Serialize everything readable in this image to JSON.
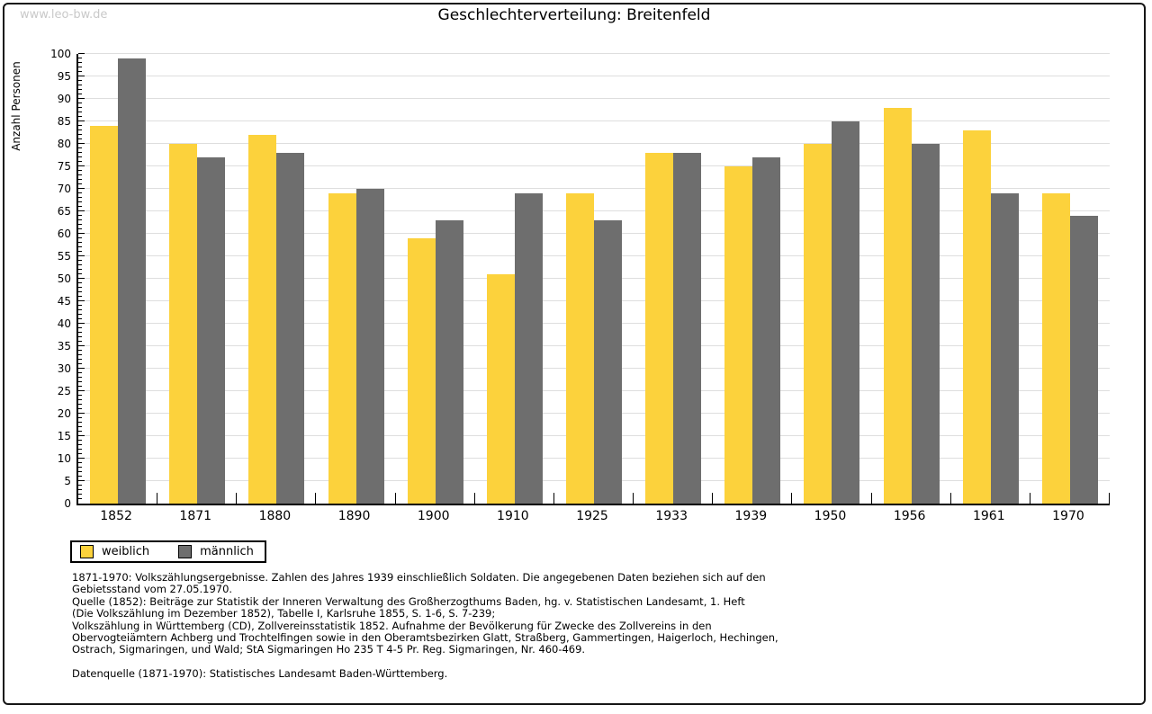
{
  "watermark": "www.leo-bw.de",
  "chart_data": {
    "type": "bar",
    "title": "Geschlechterverteilung: Breitenfeld",
    "ylabel": "Anzahl Personen",
    "xlabel": "",
    "ylim": [
      0,
      100
    ],
    "y_major_step": 5,
    "y_minor_step": 1,
    "grid": true,
    "legend_position": "bottom-left",
    "categories": [
      "1852",
      "1871",
      "1880",
      "1890",
      "1900",
      "1910",
      "1925",
      "1933",
      "1939",
      "1950",
      "1956",
      "1961",
      "1970"
    ],
    "series": [
      {
        "name": "weiblich",
        "color": "#FCD23C",
        "values": [
          84,
          80,
          82,
          69,
          59,
          51,
          69,
          78,
          75,
          80,
          88,
          83,
          69
        ]
      },
      {
        "name": "männlich",
        "color": "#6E6E6E",
        "values": [
          99,
          77,
          78,
          70,
          63,
          69,
          63,
          78,
          77,
          85,
          80,
          69,
          64
        ]
      }
    ],
    "colors": {
      "grid": "#DEDEDE",
      "axis": "#000000",
      "watermark": "#C9C9C9"
    }
  },
  "footer": {
    "lines": [
      "1871-1970: Volkszählungsergebnisse. Zahlen des Jahres 1939 einschließlich Soldaten. Die angegebenen Daten beziehen sich auf den",
      "Gebietsstand vom 27.05.1970.",
      "Quelle (1852): Beiträge zur Statistik der Inneren Verwaltung des Großherzogthums Baden, hg. v. Statistischen Landesamt, 1. Heft",
      "(Die Volkszählung im Dezember 1852), Tabelle I, Karlsruhe 1855, S. 1-6, S. 7-239;",
      "Volkszählung in Württemberg (CD), Zollvereinsstatistik 1852. Aufnahme der Bevölkerung für Zwecke des Zollvereins in den",
      "Obervogteiämtern Achberg und Trochtelfingen sowie in den Oberamtsbezirken Glatt, Straßberg, Gammertingen, Haigerloch, Hechingen,",
      "Ostrach, Sigmaringen, und Wald; StA Sigmaringen Ho 235 T 4-5 Pr. Reg. Sigmaringen, Nr. 460-469."
    ],
    "datasource": "Datenquelle (1871-1970): Statistisches Landesamt Baden-Württemberg."
  }
}
